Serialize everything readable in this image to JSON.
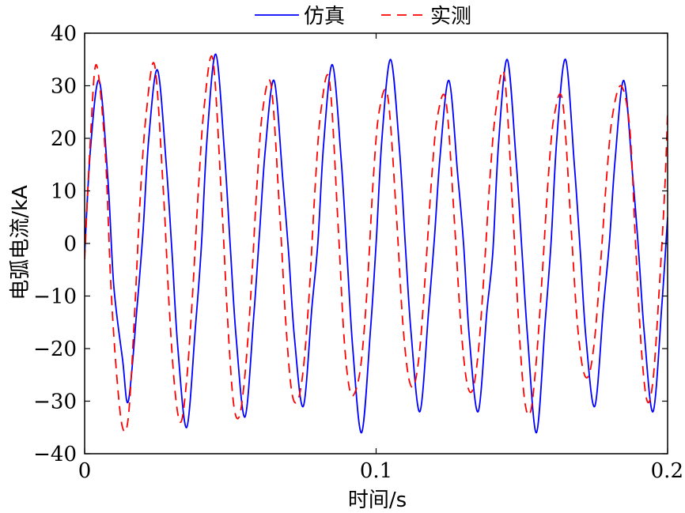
{
  "chart_data": {
    "type": "line",
    "title": "",
    "xlabel": "时间/s",
    "ylabel": "电弧电流/kA",
    "xlim": [
      0,
      0.2
    ],
    "ylim": [
      -40,
      40
    ],
    "xticks": [
      0,
      0.1,
      0.2
    ],
    "xtick_labels": [
      "0",
      "0.1",
      "0.2"
    ],
    "yticks": [
      -40,
      -30,
      -20,
      -10,
      0,
      10,
      20,
      30,
      40
    ],
    "ytick_labels": [
      "−40",
      "−30",
      "−20",
      "−10",
      "0",
      "10",
      "20",
      "30",
      "40"
    ],
    "grid": false,
    "legend_position": "top-center",
    "series": [
      {
        "name": "仿真",
        "color": "#0000ff",
        "style": "solid",
        "x": [
          0,
          0.002,
          0.005,
          0.008,
          0.01,
          0.013,
          0.015,
          0.018,
          0.02,
          0.022,
          0.025,
          0.028,
          0.03,
          0.032,
          0.035,
          0.038,
          0.04,
          0.042,
          0.045,
          0.048,
          0.05,
          0.052,
          0.055,
          0.058,
          0.06,
          0.062,
          0.065,
          0.068,
          0.07,
          0.072,
          0.075,
          0.078,
          0.08,
          0.082,
          0.085,
          0.088,
          0.09,
          0.092,
          0.095,
          0.098,
          0.1,
          0.102,
          0.105,
          0.108,
          0.11,
          0.112,
          0.115,
          0.118,
          0.12,
          0.122,
          0.125,
          0.128,
          0.13,
          0.132,
          0.135,
          0.138,
          0.14,
          0.142,
          0.145,
          0.148,
          0.15,
          0.152,
          0.155,
          0.158,
          0.16,
          0.162,
          0.165,
          0.168,
          0.17,
          0.172,
          0.175,
          0.178,
          0.18,
          0.182,
          0.185,
          0.188,
          0.19,
          0.192,
          0.195,
          0.198,
          0.2
        ],
        "y": [
          -2,
          18,
          31,
          12,
          -8,
          -22,
          -30,
          -12,
          2,
          20,
          33,
          15,
          -2,
          -20,
          -35,
          -16,
          -1,
          20,
          36,
          17,
          -1,
          -18,
          -33,
          -14,
          2,
          18,
          31,
          12,
          -2,
          -18,
          -31,
          -12,
          0,
          19,
          34,
          16,
          -2,
          -20,
          -36,
          -17,
          0,
          20,
          35,
          18,
          0,
          -17,
          -32,
          -13,
          1,
          17,
          31,
          13,
          0,
          -18,
          -32,
          -13,
          -2,
          19,
          35,
          16,
          -1,
          -18,
          -36,
          -15,
          0,
          20,
          35,
          15,
          -1,
          -18,
          -31,
          -12,
          0,
          16,
          31,
          13,
          -1,
          -17,
          -32,
          -12,
          5
        ]
      },
      {
        "name": "实测",
        "color": "#ff0000",
        "style": "dashed",
        "x": [
          0,
          0.002,
          0.004,
          0.007,
          0.009,
          0.011,
          0.013,
          0.015,
          0.017,
          0.019,
          0.021,
          0.024,
          0.027,
          0.029,
          0.031,
          0.033,
          0.035,
          0.037,
          0.039,
          0.041,
          0.044,
          0.047,
          0.049,
          0.051,
          0.053,
          0.055,
          0.057,
          0.059,
          0.061,
          0.064,
          0.067,
          0.069,
          0.071,
          0.073,
          0.075,
          0.077,
          0.079,
          0.081,
          0.084,
          0.087,
          0.089,
          0.091,
          0.093,
          0.095,
          0.097,
          0.099,
          0.101,
          0.104,
          0.107,
          0.109,
          0.111,
          0.113,
          0.115,
          0.117,
          0.119,
          0.121,
          0.124,
          0.127,
          0.129,
          0.131,
          0.133,
          0.135,
          0.137,
          0.139,
          0.141,
          0.144,
          0.147,
          0.149,
          0.151,
          0.153,
          0.155,
          0.157,
          0.159,
          0.161,
          0.164,
          0.167,
          0.169,
          0.171,
          0.173,
          0.175,
          0.177,
          0.179,
          0.181,
          0.184,
          0.187,
          0.189,
          0.191,
          0.193,
          0.195,
          0.197,
          0.199,
          0.2
        ],
        "y": [
          -3,
          20,
          34,
          18,
          -8,
          -25,
          -35,
          -33,
          -15,
          8,
          24,
          34,
          10,
          -12,
          -28,
          -34,
          -26,
          -10,
          10,
          26,
          35,
          8,
          -14,
          -30,
          -33,
          -25,
          -10,
          10,
          25,
          30,
          5,
          -15,
          -28,
          -30,
          -24,
          -10,
          10,
          25,
          31,
          3,
          -18,
          -28,
          -28,
          -22,
          -8,
          12,
          25,
          28,
          5,
          -14,
          -25,
          -27,
          -20,
          -5,
          12,
          24,
          27,
          3,
          -15,
          -26,
          -28,
          -21,
          -6,
          12,
          25,
          32,
          5,
          -16,
          -30,
          -32,
          -22,
          -6,
          12,
          24,
          27,
          2,
          -15,
          -24,
          -25,
          -18,
          -4,
          12,
          24,
          30,
          22,
          0,
          -20,
          -30,
          -26,
          -10,
          10,
          25
        ]
      }
    ]
  }
}
